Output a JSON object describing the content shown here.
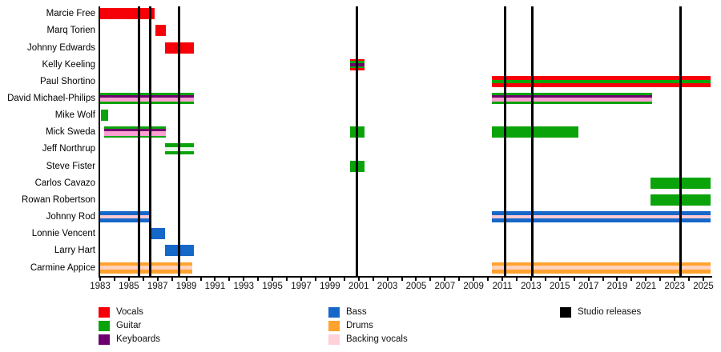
{
  "chart_data": {
    "type": "bar",
    "variant": "band-member-gantt-timeline",
    "title": "",
    "x_axis": {
      "start_year": 1983,
      "end_year": 2025.6,
      "tick_interval_years": 1,
      "label_interval_years": 2,
      "tick_labels": [
        "1983",
        "1985",
        "1987",
        "1989",
        "1991",
        "1993",
        "1995",
        "1997",
        "1999",
        "2001",
        "2003",
        "2005",
        "2007",
        "2009",
        "2011",
        "2013",
        "2015",
        "2017",
        "2019",
        "2021",
        "2023",
        "2025"
      ]
    },
    "palette": {
      "vocals": "#f50008",
      "guitar": "#0aa40a",
      "keyboards": "#6d016d",
      "bass": "#1668c8",
      "drums": "#ffa32e",
      "backing": "#ffc9d2",
      "backing_bright": "#ff9fd2",
      "guitar_light": "#e9f7e9",
      "drums_light": "#ffd2bd",
      "release_line": "#000000"
    },
    "releases_years": [
      1985.7,
      1986.5,
      1988.5,
      2000.85,
      2011.2,
      2013.07,
      2023.38
    ],
    "members": [
      {
        "name": "Marcie Free",
        "bars": [
          {
            "start": 1983.0,
            "end": 1986.8,
            "stripes": [
              "vocals"
            ]
          }
        ]
      },
      {
        "name": "Marq Torien",
        "bars": [
          {
            "start": 1986.85,
            "end": 1987.6,
            "stripes": [
              "vocals"
            ]
          }
        ]
      },
      {
        "name": "Johnny Edwards",
        "bars": [
          {
            "start": 1987.5,
            "end": 1989.5,
            "stripes": [
              "vocals"
            ]
          }
        ]
      },
      {
        "name": "Kelly Keeling",
        "bars": [
          {
            "start": 2000.4,
            "end": 2001.4,
            "stripes": [
              "vocals",
              "guitar",
              "keyboards",
              "guitar",
              "vocals"
            ],
            "weights": [
              2.5,
              2,
              4,
              2,
              2.5
            ]
          }
        ]
      },
      {
        "name": "Paul Shortino",
        "bars": [
          {
            "start": 2010.3,
            "end": 2025.5,
            "stripes": [
              "vocals",
              "guitar",
              "vocals"
            ]
          }
        ]
      },
      {
        "name": "David Michael-Philips",
        "bars": [
          {
            "start": 1983.0,
            "end": 1989.5,
            "stripes": [
              "guitar",
              "keyboards",
              "backing_bright",
              "guitar"
            ],
            "weights": [
              2,
              2.5,
              4.5,
              2
            ]
          },
          {
            "start": 2010.3,
            "end": 2021.4,
            "stripes": [
              "guitar",
              "keyboards",
              "backing_bright",
              "guitar"
            ],
            "weights": [
              2,
              2.5,
              4.5,
              2
            ]
          }
        ]
      },
      {
        "name": "Mike Wolf",
        "bars": [
          {
            "start": 1983.05,
            "end": 1983.55,
            "stripes": [
              "guitar"
            ]
          }
        ]
      },
      {
        "name": "Mick Sweda",
        "bars": [
          {
            "start": 1983.3,
            "end": 1987.6,
            "stripes": [
              "guitar",
              "keyboards",
              "backing_bright",
              "guitar"
            ],
            "weights": [
              2,
              2.5,
              4.5,
              2
            ]
          },
          {
            "start": 2000.4,
            "end": 2001.4,
            "stripes": [
              "guitar"
            ]
          },
          {
            "start": 2010.3,
            "end": 2016.3,
            "stripes": [
              "guitar"
            ]
          }
        ]
      },
      {
        "name": "Jeff Northrup",
        "bars": [
          {
            "start": 1987.5,
            "end": 1989.5,
            "stripes": [
              "guitar",
              "guitar_light",
              "guitar"
            ],
            "weights": [
              4.5,
              4,
              4.5
            ]
          }
        ]
      },
      {
        "name": "Steve Fister",
        "bars": [
          {
            "start": 2000.4,
            "end": 2001.4,
            "stripes": [
              "guitar"
            ]
          }
        ]
      },
      {
        "name": "Carlos Cavazo",
        "bars": [
          {
            "start": 2021.3,
            "end": 2025.5,
            "stripes": [
              "guitar"
            ]
          }
        ]
      },
      {
        "name": "Rowan Robertson",
        "bars": [
          {
            "start": 2021.3,
            "end": 2025.5,
            "stripes": [
              "guitar"
            ]
          }
        ]
      },
      {
        "name": "Johnny Rod",
        "bars": [
          {
            "start": 1983.0,
            "end": 1986.5,
            "stripes": [
              "bass",
              "backing",
              "bass"
            ]
          },
          {
            "start": 2010.3,
            "end": 2025.5,
            "stripes": [
              "bass",
              "backing",
              "bass"
            ]
          }
        ]
      },
      {
        "name": "Lonnie Vencent",
        "bars": [
          {
            "start": 1986.5,
            "end": 1987.5,
            "stripes": [
              "bass"
            ]
          }
        ]
      },
      {
        "name": "Larry Hart",
        "bars": [
          {
            "start": 1987.5,
            "end": 1989.5,
            "stripes": [
              "bass"
            ]
          }
        ]
      },
      {
        "name": "Carmine Appice",
        "bars": [
          {
            "start": 1983.0,
            "end": 1989.4,
            "stripes": [
              "drums",
              "drums_light",
              "drums"
            ],
            "weights": [
              4.5,
              4,
              4.5
            ]
          },
          {
            "start": 2010.3,
            "end": 2025.5,
            "stripes": [
              "drums",
              "drums_light",
              "drums"
            ],
            "weights": [
              4.5,
              4,
              4.5
            ]
          }
        ]
      }
    ],
    "legend": {
      "columns": [
        [
          {
            "label": "Vocals",
            "color": "#f50008"
          },
          {
            "label": "Guitar",
            "color": "#0aa40a"
          },
          {
            "label": "Keyboards",
            "color": "#6d016d"
          }
        ],
        [
          {
            "label": "Bass",
            "color": "#1668c8"
          },
          {
            "label": "Drums",
            "color": "#ffa32e"
          },
          {
            "label": "Backing vocals",
            "color": "#ffd1d8"
          }
        ],
        [
          {
            "label": "Studio releases",
            "color": "#000000"
          }
        ]
      ]
    }
  }
}
